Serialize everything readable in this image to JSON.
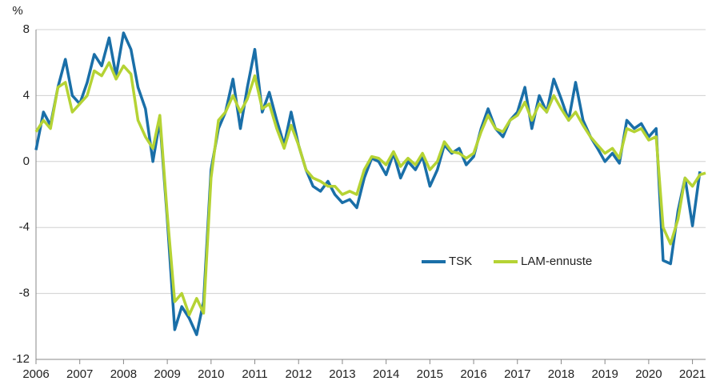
{
  "chart_data": {
    "type": "line",
    "y_label": "%",
    "x": [
      2006,
      2006.17,
      2006.33,
      2006.5,
      2006.67,
      2006.83,
      2007,
      2007.17,
      2007.33,
      2007.5,
      2007.67,
      2007.83,
      2008,
      2008.17,
      2008.33,
      2008.5,
      2008.67,
      2008.83,
      2009,
      2009.17,
      2009.33,
      2009.5,
      2009.67,
      2009.83,
      2010,
      2010.17,
      2010.33,
      2010.5,
      2010.67,
      2010.83,
      2011,
      2011.17,
      2011.33,
      2011.5,
      2011.67,
      2011.83,
      2012,
      2012.17,
      2012.33,
      2012.5,
      2012.67,
      2012.83,
      2013,
      2013.17,
      2013.33,
      2013.5,
      2013.67,
      2013.83,
      2014,
      2014.17,
      2014.33,
      2014.5,
      2014.67,
      2014.83,
      2015,
      2015.17,
      2015.33,
      2015.5,
      2015.67,
      2015.83,
      2016,
      2016.17,
      2016.33,
      2016.5,
      2016.67,
      2016.83,
      2017,
      2017.17,
      2017.33,
      2017.5,
      2017.67,
      2017.83,
      2018,
      2018.17,
      2018.33,
      2018.5,
      2018.67,
      2018.83,
      2019,
      2019.17,
      2019.33,
      2019.5,
      2019.67,
      2019.83,
      2020,
      2020.17,
      2020.33,
      2020.5,
      2020.67,
      2020.83,
      2021,
      2021.17,
      2021.3
    ],
    "series": [
      {
        "name": "TSK",
        "color": "#1a6fa8",
        "values": [
          0.7,
          3.0,
          2.2,
          4.5,
          6.2,
          4.0,
          3.5,
          4.8,
          6.5,
          5.8,
          7.5,
          5.2,
          7.8,
          6.8,
          4.5,
          3.2,
          0.0,
          2.5,
          -3.5,
          -10.2,
          -8.8,
          -9.5,
          -10.5,
          -8.5,
          -0.5,
          2.0,
          3.0,
          5.0,
          2.0,
          4.5,
          6.8,
          3.0,
          4.2,
          2.5,
          1.0,
          3.0,
          1.0,
          -0.5,
          -1.5,
          -1.8,
          -1.2,
          -2.0,
          -2.5,
          -2.3,
          -2.8,
          -1.0,
          0.2,
          0.0,
          -0.8,
          0.5,
          -1.0,
          0.0,
          -0.5,
          0.3,
          -1.5,
          -0.5,
          1.0,
          0.5,
          0.8,
          -0.2,
          0.3,
          2.0,
          3.2,
          2.0,
          1.5,
          2.5,
          3.0,
          4.5,
          2.0,
          4.0,
          3.0,
          5.0,
          3.8,
          2.5,
          4.8,
          2.5,
          1.5,
          0.8,
          0.0,
          0.5,
          -0.1,
          2.5,
          2.0,
          2.3,
          1.5,
          2.0,
          -6.0,
          -6.2,
          -3.0,
          -1.0,
          -3.9,
          -0.6,
          null
        ]
      },
      {
        "name": "LAM-ennuste",
        "color": "#b5d334",
        "values": [
          1.8,
          2.5,
          2.0,
          4.5,
          4.8,
          3.0,
          3.5,
          4.0,
          5.5,
          5.2,
          6.0,
          5.0,
          5.8,
          5.3,
          2.5,
          1.5,
          0.8,
          2.8,
          -3.2,
          -8.5,
          -8.0,
          -9.3,
          -8.3,
          -9.2,
          -1.0,
          2.5,
          3.0,
          4.0,
          3.0,
          3.8,
          5.2,
          3.2,
          3.5,
          2.0,
          0.8,
          2.2,
          1.0,
          -0.5,
          -1.0,
          -1.2,
          -1.5,
          -1.5,
          -2.0,
          -1.8,
          -2.0,
          -0.5,
          0.3,
          0.2,
          -0.2,
          0.6,
          -0.3,
          0.2,
          -0.2,
          0.5,
          -0.5,
          0.0,
          1.2,
          0.6,
          0.5,
          0.2,
          0.5,
          1.8,
          2.8,
          2.0,
          1.8,
          2.5,
          2.8,
          3.6,
          2.5,
          3.5,
          3.0,
          4.0,
          3.2,
          2.5,
          3.0,
          2.2,
          1.5,
          1.0,
          0.5,
          0.8,
          0.2,
          2.0,
          1.8,
          2.0,
          1.3,
          1.5,
          -4.0,
          -5.0,
          -3.5,
          -1.0,
          -1.5,
          -0.8,
          -0.7
        ]
      }
    ],
    "xlim": [
      2006,
      2021.3
    ],
    "xticks": [
      2006,
      2007,
      2008,
      2009,
      2010,
      2011,
      2012,
      2013,
      2014,
      2015,
      2016,
      2017,
      2018,
      2019,
      2020,
      2021
    ],
    "ylim": [
      -12,
      8
    ],
    "yticks": [
      -12,
      -8,
      -4,
      0,
      4,
      8
    ],
    "grid": true
  }
}
